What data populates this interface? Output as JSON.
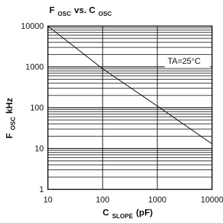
{
  "chart_data": {
    "type": "line",
    "title": {
      "main_a": "F",
      "sub_a": "OSC",
      "mid": " vs. C",
      "sub_b": "OSC"
    },
    "xlabel": {
      "main": "C",
      "sub": "SLOPE",
      "suffix": " (pF)"
    },
    "ylabel": {
      "main": "F",
      "sub": "OSC",
      "suffix": "kHz"
    },
    "x_scale": "log",
    "y_scale": "log",
    "xlim": [
      10,
      10000
    ],
    "ylim": [
      1,
      10000
    ],
    "x_ticks": [
      "10",
      "100",
      "1000",
      "10000"
    ],
    "y_ticks": [
      "1",
      "10",
      "100",
      "1000",
      "10000"
    ],
    "grid": {
      "vertical": "major decades only",
      "horizontal": "decade plus minor log lines"
    },
    "annotation": "TA=25°C",
    "series": [
      {
        "x": [
          10,
          100,
          1000,
          10000
        ],
        "y": [
          10000,
          900,
          110,
          13
        ]
      }
    ]
  }
}
